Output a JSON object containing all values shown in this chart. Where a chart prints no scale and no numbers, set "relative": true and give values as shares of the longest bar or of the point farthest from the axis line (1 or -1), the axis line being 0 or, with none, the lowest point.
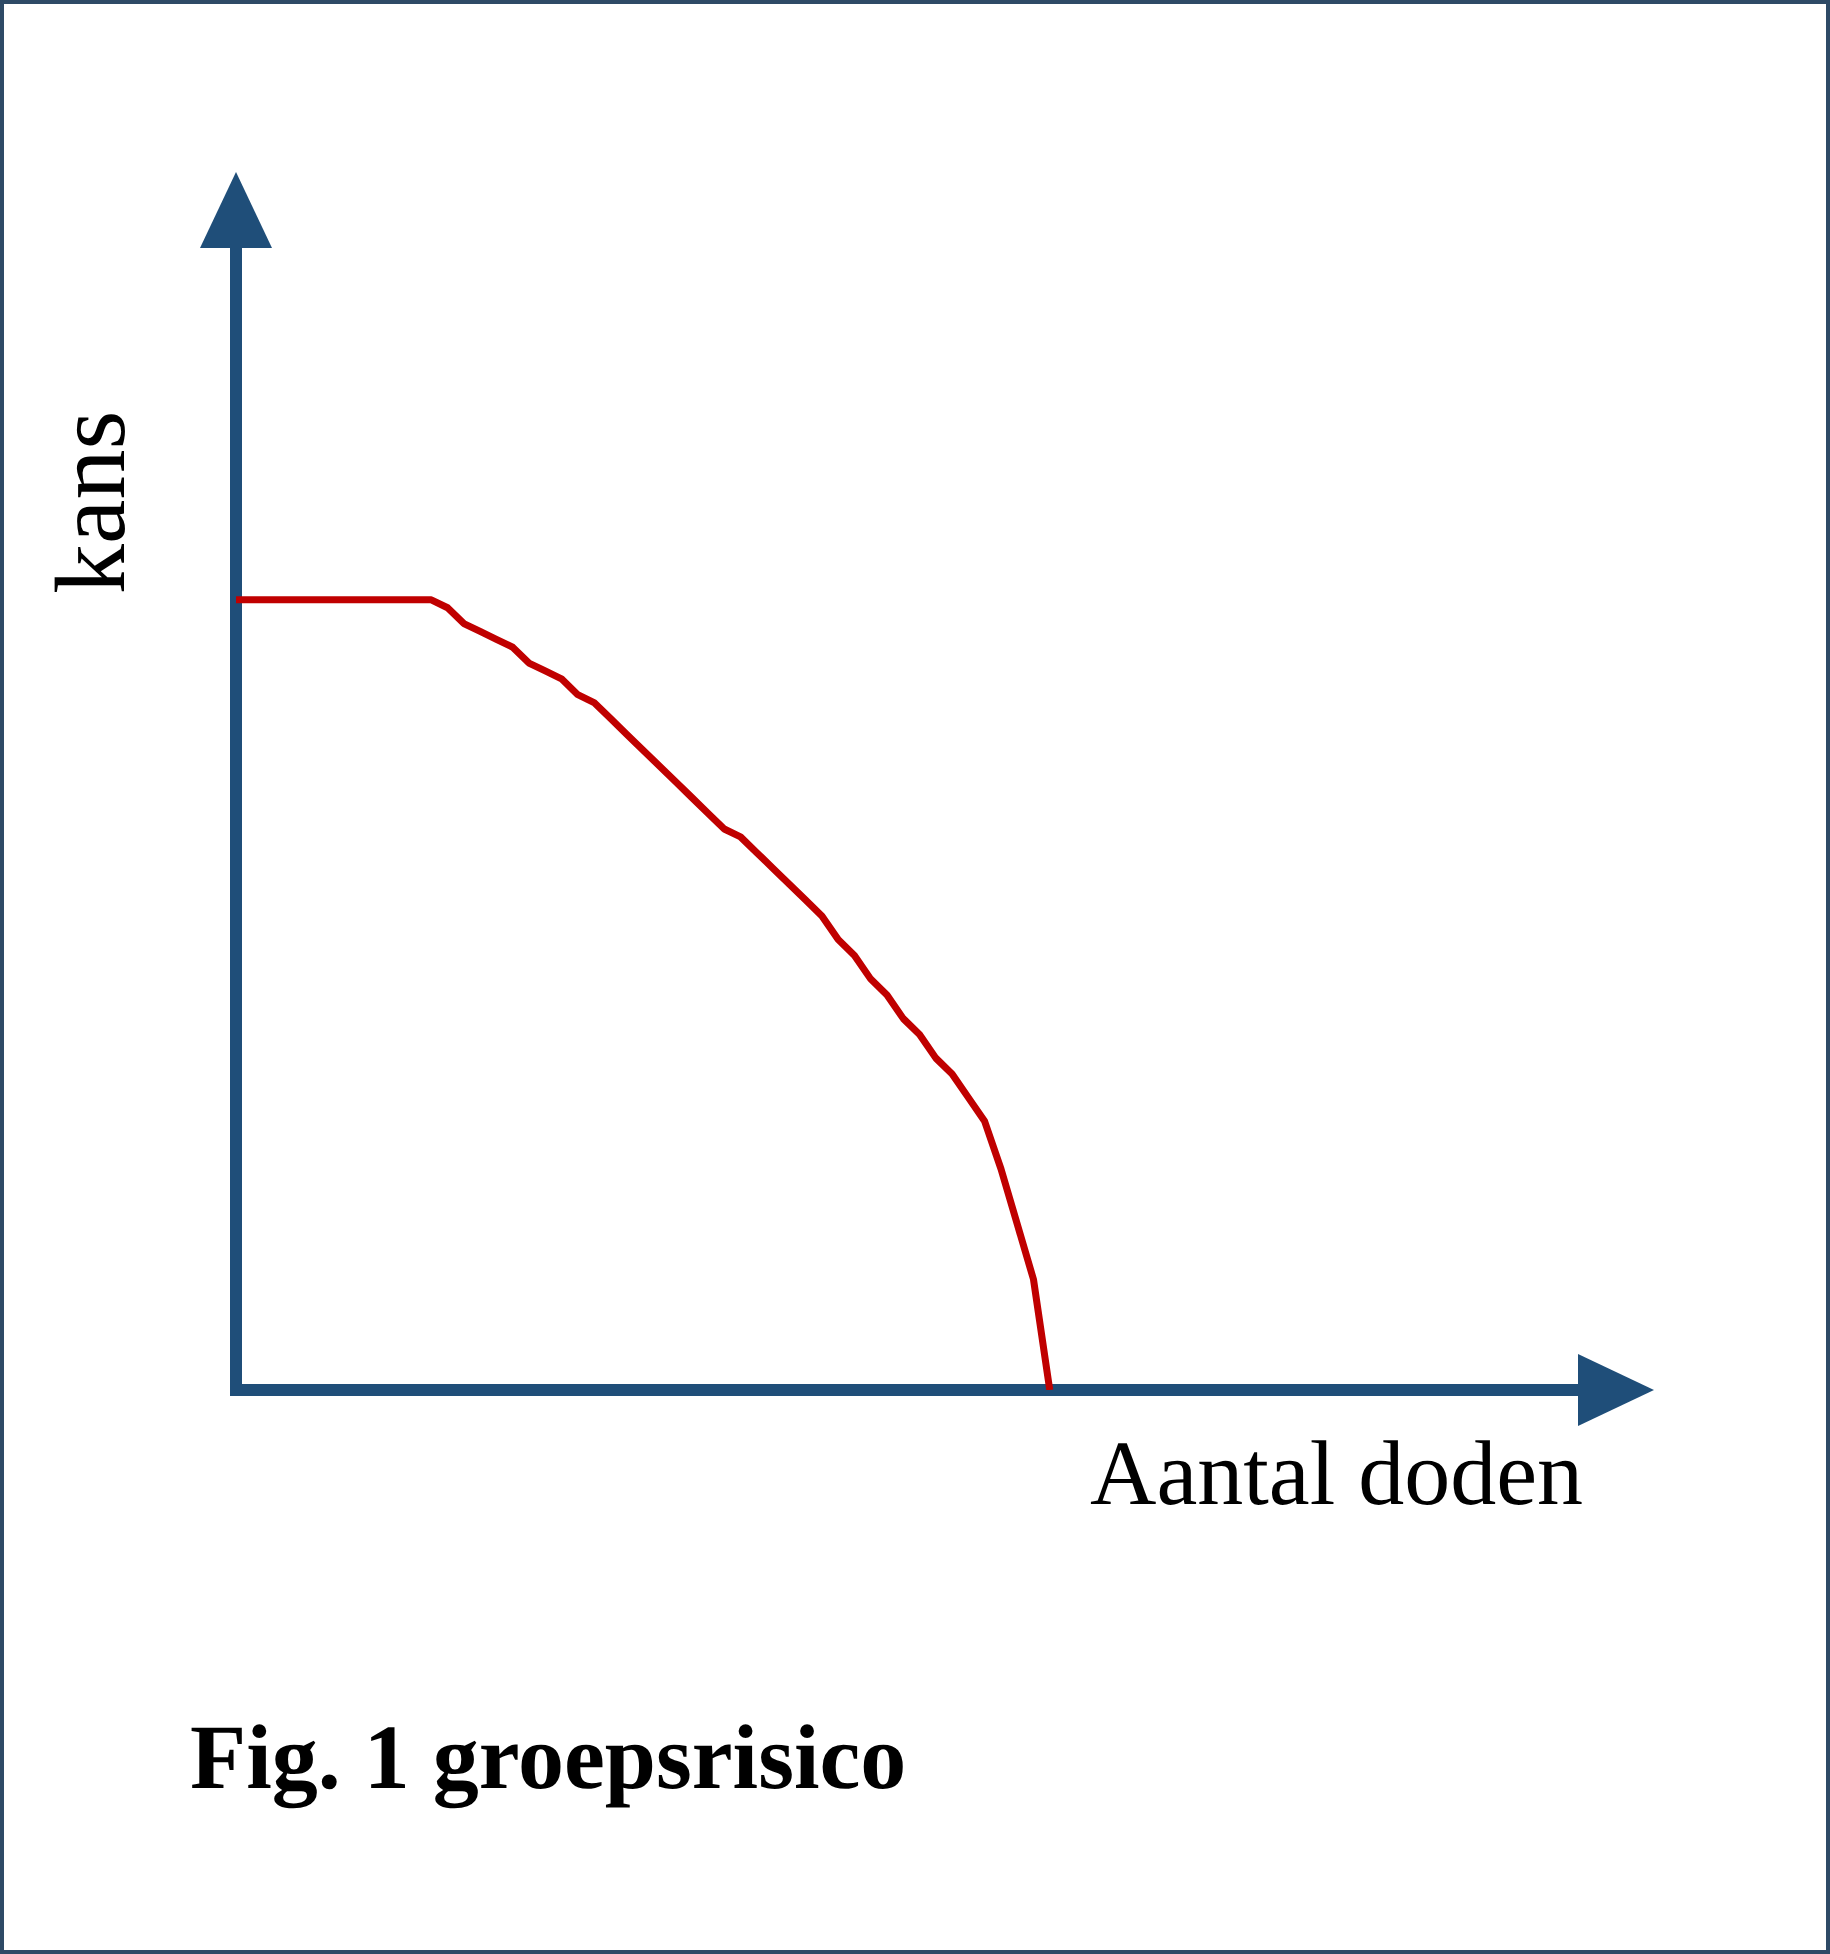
{
  "chart_data": {
    "type": "line",
    "relative": true,
    "xlabel": "Aantal doden",
    "ylabel": "kans",
    "annotations": [
      "Fig. 1 groepsrisico"
    ],
    "categories": [
      null,
      null,
      null,
      null,
      null,
      null,
      null,
      null,
      null,
      null,
      null,
      null,
      null,
      null,
      null,
      null,
      null,
      null,
      null,
      null,
      null,
      null,
      null,
      null,
      null,
      null,
      null,
      null,
      null,
      null,
      null,
      null,
      null,
      null,
      null,
      null,
      null,
      null,
      null,
      null,
      null,
      null,
      null,
      null,
      null,
      null,
      null,
      null,
      null,
      null,
      null
    ],
    "series": [
      {
        "color": "#c00000",
        "values": [
          1,
          1,
          1,
          1,
          1,
          1,
          1,
          1,
          1,
          1,
          1,
          1,
          1,
          0.99,
          0.97,
          0.96,
          0.95,
          0.94,
          0.92,
          0.91,
          0.9,
          0.88,
          0.87,
          0.85,
          0.83,
          0.81,
          0.79,
          0.77,
          0.75,
          0.73,
          0.71,
          0.7,
          0.68,
          0.66,
          0.64,
          0.62,
          0.6,
          0.57,
          0.55,
          0.52,
          0.5,
          0.47,
          0.45,
          0.42,
          0.4,
          0.37,
          0.34,
          0.28,
          0.21,
          0.14,
          0
        ]
      }
    ],
    "legend": false,
    "grid": false,
    "marker": "none",
    "line_style": "solid"
  }
}
